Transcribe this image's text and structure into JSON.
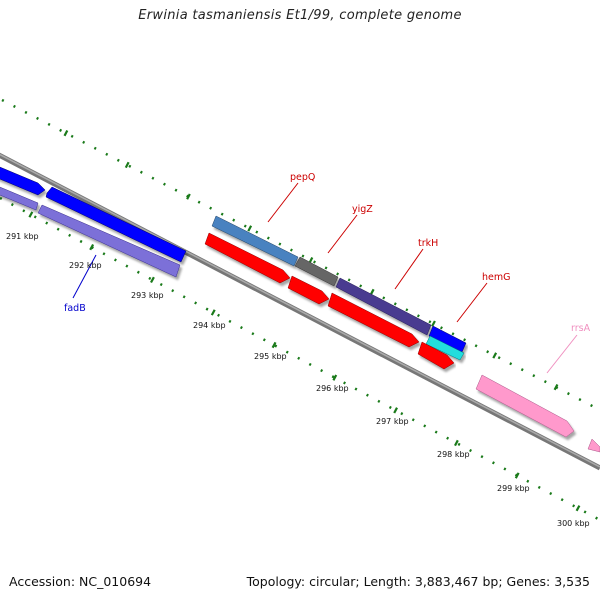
{
  "title": "Erwinia tasmaniensis Et1/99, complete genome",
  "footer": {
    "accession": "Accession: NC_010694",
    "topology": "Topology: circular; Length: 3,883,467 bp; Genes: 3,535"
  },
  "ticks": [
    "291 kbp",
    "292 kbp",
    "293 kbp",
    "294 kbp",
    "295 kbp",
    "296 kbp",
    "297 kbp",
    "298 kbp",
    "299 kbp",
    "300 kbp"
  ],
  "genes": [
    {
      "name": "pepQ",
      "color": "#cc0000"
    },
    {
      "name": "yigZ",
      "color": "#cc0000"
    },
    {
      "name": "trkH",
      "color": "#cc0000"
    },
    {
      "name": "hemG",
      "color": "#cc0000"
    },
    {
      "name": "rrsA",
      "color": "#f090c0"
    },
    {
      "name": "fadB",
      "color": "#0000cc"
    }
  ],
  "colors": {
    "cds_forward": "#ff0000",
    "cds_reverse": "#0000ff",
    "rrna": "#ff99cc",
    "backbone": "#777777",
    "tick": "#1a7a1a"
  }
}
